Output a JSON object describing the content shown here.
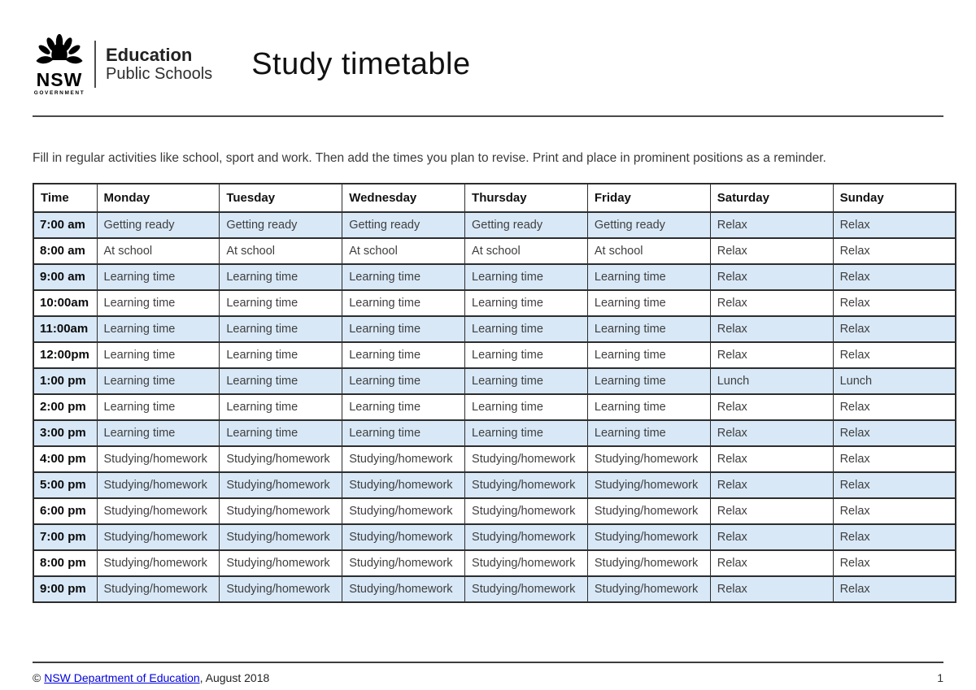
{
  "header": {
    "logo": {
      "nsw": "NSW",
      "government": "GOVERNMENT",
      "department": "Education",
      "sub_department": "Public Schools"
    },
    "title": "Study timetable"
  },
  "intro_text": "Fill in regular activities like school, sport and work. Then add the times you plan to revise. Print and place in prominent positions as a reminder.",
  "table": {
    "columns": [
      "Time",
      "Monday",
      "Tuesday",
      "Wednesday",
      "Thursday",
      "Friday",
      "Saturday",
      "Sunday"
    ],
    "rows": [
      {
        "time": "7:00 am",
        "cells": [
          "Getting ready",
          "Getting ready",
          "Getting ready",
          "Getting ready",
          "Getting ready",
          "Relax",
          "Relax"
        ]
      },
      {
        "time": "8:00 am",
        "cells": [
          "At school",
          "At school",
          "At school",
          "At school",
          "At school",
          "Relax",
          "Relax"
        ]
      },
      {
        "time": "9:00 am",
        "cells": [
          "Learning time",
          "Learning time",
          "Learning time",
          "Learning time",
          "Learning time",
          "Relax",
          "Relax"
        ]
      },
      {
        "time": "10:00am",
        "cells": [
          "Learning time",
          "Learning time",
          "Learning time",
          "Learning time",
          "Learning time",
          "Relax",
          "Relax"
        ]
      },
      {
        "time": "11:00am",
        "cells": [
          "Learning time",
          "Learning time",
          "Learning time",
          "Learning time",
          "Learning time",
          "Relax",
          "Relax"
        ]
      },
      {
        "time": "12:00pm",
        "cells": [
          "Learning time",
          "Learning time",
          "Learning time",
          "Learning time",
          "Learning time",
          "Relax",
          "Relax"
        ]
      },
      {
        "time": "1:00 pm",
        "cells": [
          "Learning time",
          "Learning time",
          "Learning time",
          "Learning time",
          "Learning time",
          "Lunch",
          "Lunch"
        ]
      },
      {
        "time": "2:00 pm",
        "cells": [
          "Learning time",
          "Learning time",
          "Learning time",
          "Learning time",
          "Learning time",
          "Relax",
          "Relax"
        ]
      },
      {
        "time": "3:00 pm",
        "cells": [
          "Learning time",
          "Learning time",
          "Learning time",
          "Learning time",
          "Learning time",
          "Relax",
          "Relax"
        ]
      },
      {
        "time": "4:00 pm",
        "cells": [
          "Studying/homework",
          "Studying/homework",
          "Studying/homework",
          "Studying/homework",
          "Studying/homework",
          "Relax",
          "Relax"
        ]
      },
      {
        "time": "5:00 pm",
        "cells": [
          "Studying/homework",
          "Studying/homework",
          "Studying/homework",
          "Studying/homework",
          "Studying/homework",
          "Relax",
          "Relax"
        ]
      },
      {
        "time": "6:00 pm",
        "cells": [
          "Studying/homework",
          "Studying/homework",
          "Studying/homework",
          "Studying/homework",
          "Studying/homework",
          "Relax",
          "Relax"
        ]
      },
      {
        "time": "7:00 pm",
        "cells": [
          "Studying/homework",
          "Studying/homework",
          "Studying/homework",
          "Studying/homework",
          "Studying/homework",
          "Relax",
          "Relax"
        ]
      },
      {
        "time": "8:00 pm",
        "cells": [
          "Studying/homework",
          "Studying/homework",
          "Studying/homework",
          "Studying/homework",
          "Studying/homework",
          "Relax",
          "Relax"
        ]
      },
      {
        "time": "9:00 pm",
        "cells": [
          "Studying/homework",
          "Studying/homework",
          "Studying/homework",
          "Studying/homework",
          "Studying/homework",
          "Relax",
          "Relax"
        ]
      }
    ]
  },
  "footer": {
    "copyright_prefix": "© ",
    "link_text": "NSW Department of Education",
    "copyright_suffix": ", August 2018",
    "page_number": "1"
  },
  "colors": {
    "row_alt_blue": "#d8e8f7",
    "table_border": "#2d2d2d",
    "link_blue": "#0000dd"
  }
}
